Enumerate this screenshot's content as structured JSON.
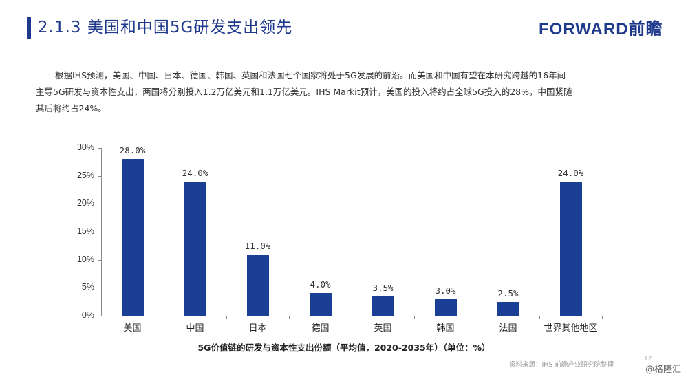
{
  "header": {
    "title": "2.1.3 美国和中国5G研发支出领先",
    "logo": "FORWARD前瞻"
  },
  "paragraph": {
    "line1": "根据IHS预测，美国、中国、日本、德国、韩国、英国和法国七个国家将处于5G发展的前沿。而美国和中国有望在本研究跨越的16年间",
    "line2": "主导5G研发与资本性支出，两国将分别投入1.2万亿美元和1.1万亿美元。IHS Markit预计，美国的投入将约占全球5G投入的28%，中国紧随",
    "line3": "其后将约占24%。"
  },
  "chart_data": {
    "type": "bar",
    "title": "5G价值链的研发与资本性支出份额（平均值，2020-2035年）（单位：%）",
    "xlabel": "",
    "ylabel": "",
    "categories": [
      "美国",
      "中国",
      "日本",
      "德国",
      "英国",
      "韩国",
      "法国",
      "世界其他地区"
    ],
    "values": [
      28.0,
      24.0,
      11.0,
      4.0,
      3.5,
      3.0,
      2.5,
      24.0
    ],
    "value_labels": [
      "28.0%",
      "24.0%",
      "11.0%",
      "4.0%",
      "3.5%",
      "3.0%",
      "2.5%",
      "24.0%"
    ],
    "yticks": [
      "0%",
      "5%",
      "10%",
      "15%",
      "20%",
      "25%",
      "30%"
    ],
    "ylim": [
      0,
      30
    ],
    "grid": false,
    "legend": "none",
    "bar_color": "#1b3f94"
  },
  "footer": {
    "source": "资料来源：IHS 前瞻产业研究院整理",
    "page_number": "12",
    "credit": "@格隆汇"
  },
  "colors": {
    "accent": "#1f3a8c",
    "bar": "#1b3f94"
  }
}
